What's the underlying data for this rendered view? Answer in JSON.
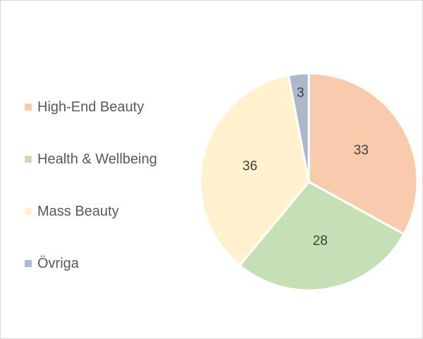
{
  "chart_data": {
    "type": "pie",
    "categories": [
      "High-End Beauty",
      "Health & Wellbeing",
      "Mass Beauty",
      "Övriga"
    ],
    "values": [
      33,
      28,
      36,
      3
    ],
    "colors": [
      "#f8cbad",
      "#c5e0b4",
      "#fff2cc",
      "#adb9ca"
    ],
    "title": "",
    "legend_position": "left",
    "data_labels": [
      "33",
      "28",
      "36",
      "3"
    ]
  }
}
